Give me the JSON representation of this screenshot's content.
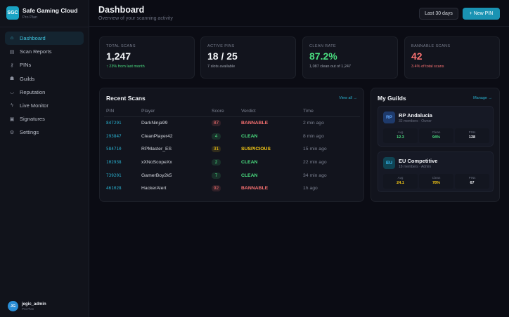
{
  "brand": {
    "logo": "SGC",
    "name": "Safe Gaming Cloud",
    "plan": "Pro Plan"
  },
  "nav": [
    {
      "label": "Dashboard",
      "icon": "home-icon",
      "glyph": "⌂",
      "active": true
    },
    {
      "label": "Scan Reports",
      "icon": "document-icon",
      "glyph": "▤"
    },
    {
      "label": "PINs",
      "icon": "key-icon",
      "glyph": "⚷"
    },
    {
      "label": "Guilds",
      "icon": "users-icon",
      "glyph": "☗"
    },
    {
      "label": "Reputation",
      "icon": "smile-icon",
      "glyph": "◡"
    },
    {
      "label": "Live Monitor",
      "icon": "bolt-icon",
      "glyph": "ϟ"
    },
    {
      "label": "Signatures",
      "icon": "signature-icon",
      "glyph": "▣"
    },
    {
      "label": "Settings",
      "icon": "gear-icon",
      "glyph": "⚙"
    }
  ],
  "user": {
    "initials": "JG",
    "name": "jegic_admin",
    "plan": "Pro Plan"
  },
  "header": {
    "title": "Dashboard",
    "subtitle": "Overview of your scanning activity",
    "range": "Last 30 days",
    "new_pin": "+ New PIN"
  },
  "stats": [
    {
      "label": "TOTAL SCANS",
      "value": "1,247",
      "note": "↑ 23% from last month",
      "value_color": "#f3f5f8",
      "note_color": "#4ade80"
    },
    {
      "label": "ACTIVE PINS",
      "value": "18 / 25",
      "note": "7 slots available",
      "value_color": "#f3f5f8",
      "note_color": "#9aa0ac"
    },
    {
      "label": "CLEAN RATE",
      "value": "87.2%",
      "note": "1,087 clean out of 1,247",
      "value_color": "#4ade80",
      "note_color": "#9aa0ac"
    },
    {
      "label": "BANNABLE SCANS",
      "value": "42",
      "note": "3.4% of total scans",
      "value_color": "#f87171",
      "note_color": "#f87171"
    }
  ],
  "recent": {
    "title": "Recent Scans",
    "view_all": "View all →",
    "columns": [
      "PIN",
      "Player",
      "Score",
      "Verdict",
      "Time"
    ],
    "rows": [
      {
        "pin": "847291",
        "player": "DarkNinja99",
        "score": "87",
        "verdict": "BANNABLE",
        "time": "2 min ago"
      },
      {
        "pin": "293847",
        "player": "CleanPlayer42",
        "score": "4",
        "verdict": "CLEAN",
        "time": "8 min ago"
      },
      {
        "pin": "584710",
        "player": "RPMaster_ES",
        "score": "31",
        "verdict": "SUSPICIOUS",
        "time": "15 min ago"
      },
      {
        "pin": "102938",
        "player": "xXNoScopeXx",
        "score": "2",
        "verdict": "CLEAN",
        "time": "22 min ago"
      },
      {
        "pin": "739201",
        "player": "GamerBoy2k5",
        "score": "7",
        "verdict": "CLEAN",
        "time": "34 min ago"
      },
      {
        "pin": "461028",
        "player": "HackerAlert",
        "score": "92",
        "verdict": "BANNABLE",
        "time": "1h ago"
      }
    ]
  },
  "verdict_colors": {
    "BANNABLE": "#f87171",
    "CLEAN": "#4ade80",
    "SUSPICIOUS": "#facc15"
  },
  "guilds": {
    "title": "My Guilds",
    "manage": "Manage →",
    "items": [
      {
        "initials": "RP",
        "name": "RP Andalucia",
        "meta": "32 members · Owner",
        "avg_label": "Avg",
        "avg": "12.3",
        "clean_label": "Clean",
        "clean": "94%",
        "pins_label": "PINs",
        "pins": "128",
        "accent": "#4ade80"
      },
      {
        "initials": "EU",
        "name": "EU Competitive",
        "meta": "18 members · Admin",
        "avg_label": "Avg",
        "avg": "24.1",
        "clean_label": "Clean",
        "clean": "78%",
        "pins_label": "PINs",
        "pins": "67",
        "accent": "#facc15"
      }
    ]
  }
}
